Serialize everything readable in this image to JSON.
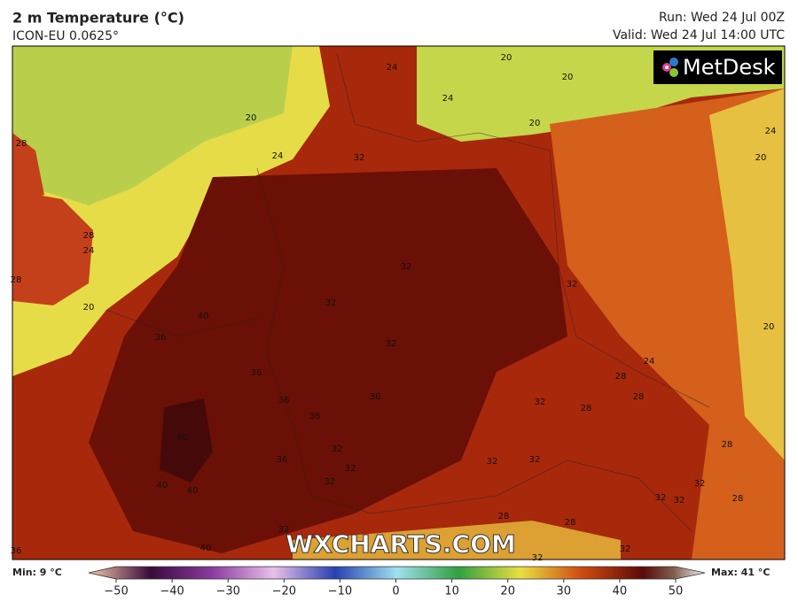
{
  "header": {
    "title": "2 m Temperature (°C)",
    "model": "ICON-EU 0.0625°",
    "run": "Run: Wed 24 Jul 00Z",
    "valid": "Valid: Wed 24 Jul 14:00 UTC"
  },
  "logo": "MetDesk",
  "watermark": "WXCHARTS.COM",
  "contour_labels": [
    "20",
    "24",
    "32",
    "28",
    "28",
    "24",
    "28",
    "20",
    "40",
    "32",
    "32",
    "32",
    "36",
    "32",
    "36",
    "36",
    "36",
    "36",
    "32",
    "28",
    "28",
    "28",
    "24",
    "20",
    "20",
    "24",
    "20",
    "20",
    "20",
    "24",
    "24",
    "40",
    "36",
    "32",
    "32",
    "32",
    "32",
    "32",
    "40",
    "40",
    "32",
    "40",
    "36",
    "28",
    "28",
    "32",
    "32",
    "32",
    "32",
    "32",
    "28",
    "28"
  ],
  "colorbar": {
    "min_label": "Min: 9 °C",
    "max_label": "Max: 41 °C",
    "ticks": [
      {
        "value": -50,
        "label": "−50"
      },
      {
        "value": -40,
        "label": "−40"
      },
      {
        "value": -30,
        "label": "−30"
      },
      {
        "value": -20,
        "label": "−20"
      },
      {
        "value": -10,
        "label": "−10"
      },
      0,
      10,
      20,
      30,
      40,
      50
    ]
  }
}
